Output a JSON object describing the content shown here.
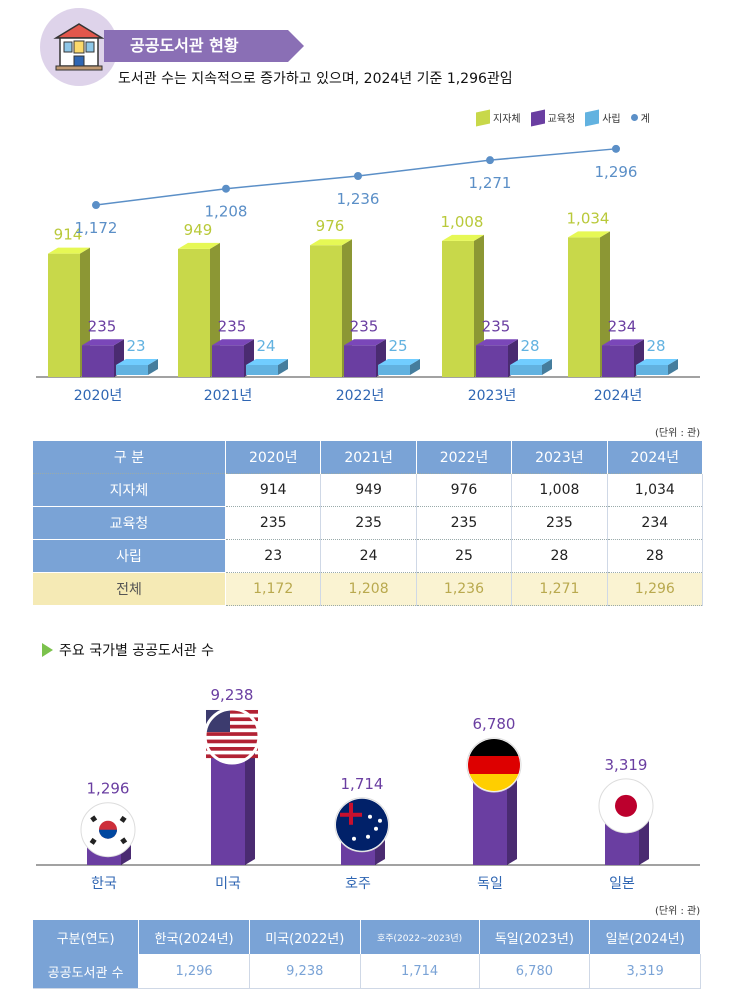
{
  "header": {
    "title": "공공도서관 현황",
    "subtitle": "도서관 수는 지속적으로 증가하고 있으며, 2024년 기준 1,296관임"
  },
  "colors": {
    "local": "#c8d84a",
    "edu": "#6a3ea1",
    "private": "#62b2e0",
    "total": "#5b8fc7",
    "header": "#8a6fb5",
    "table_head": "#7aa3d6",
    "year_label": "#2f66b3"
  },
  "legend": {
    "local": "지자체",
    "edu": "교육청",
    "private": "사립",
    "total": "계"
  },
  "unit_label": "(단위 : 관)",
  "chart_data": [
    {
      "type": "bar",
      "categories": [
        "2020년",
        "2021년",
        "2022년",
        "2023년",
        "2024년"
      ],
      "series": [
        {
          "name": "지자체",
          "values": [
            914,
            949,
            976,
            1008,
            1034
          ],
          "labels": [
            "914",
            "949",
            "976",
            "1,008",
            "1,034"
          ]
        },
        {
          "name": "교육청",
          "values": [
            235,
            235,
            235,
            235,
            234
          ],
          "labels": [
            "235",
            "235",
            "235",
            "235",
            "234"
          ]
        },
        {
          "name": "사립",
          "values": [
            23,
            24,
            25,
            28,
            28
          ],
          "labels": [
            "23",
            "24",
            "25",
            "28",
            "28"
          ]
        },
        {
          "name": "계",
          "values": [
            1172,
            1208,
            1236,
            1271,
            1296
          ],
          "labels": [
            "1,172",
            "1,208",
            "1,236",
            "1,271",
            "1,296"
          ],
          "type": "line"
        }
      ]
    },
    {
      "type": "bar",
      "title": "주요 국가별 공공도서관 수",
      "categories": [
        "한국",
        "미국",
        "호주",
        "독일",
        "일본"
      ],
      "values": [
        1296,
        9238,
        1714,
        6780,
        3319
      ],
      "labels": [
        "1,296",
        "9,238",
        "1,714",
        "6,780",
        "3,319"
      ]
    }
  ],
  "table1": {
    "headers": [
      "구 분",
      "2020년",
      "2021년",
      "2022년",
      "2023년",
      "2024년"
    ],
    "rows": [
      [
        "지자체",
        "914",
        "949",
        "976",
        "1,008",
        "1,034"
      ],
      [
        "교육청",
        "235",
        "235",
        "235",
        "235",
        "234"
      ],
      [
        "사립",
        "23",
        "24",
        "25",
        "28",
        "28"
      ]
    ],
    "total": [
      "전체",
      "1,172",
      "1,208",
      "1,236",
      "1,271",
      "1,296"
    ]
  },
  "section2_title": "주요 국가별 공공도서관 수",
  "table2": {
    "headers": [
      "구분(연도)",
      "한국(2024년)",
      "미국(2022년)",
      "호주(2022~2023년)",
      "독일(2023년)",
      "일본(2024년)"
    ],
    "row": [
      "공공도서관 수",
      "1,296",
      "9,238",
      "1,714",
      "6,780",
      "3,319"
    ]
  },
  "icons": {
    "header": "library-building-icon",
    "flags": [
      "korea-flag-icon",
      "usa-flag-icon",
      "australia-flag-icon",
      "germany-flag-icon",
      "japan-flag-icon"
    ]
  }
}
